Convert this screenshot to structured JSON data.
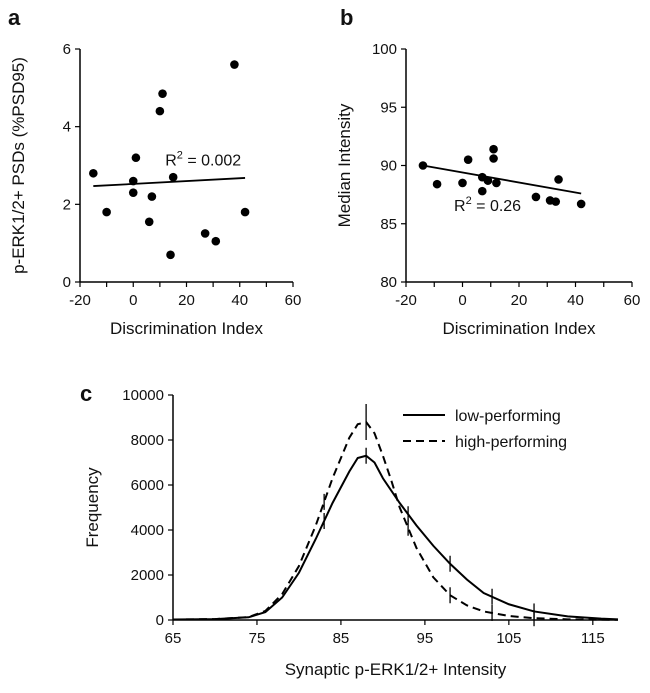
{
  "chart_data": [
    {
      "panel": "a",
      "type": "scatter",
      "xlabel": "Discrimination Index",
      "ylabel": "p-ERK1/2+ PSDs (%PSD95)",
      "xlim": [
        -20,
        60
      ],
      "ylim": [
        0,
        6
      ],
      "xticks": [
        -20,
        -10,
        0,
        10,
        20,
        30,
        40,
        50,
        60
      ],
      "xticklabels": [
        "-20",
        "",
        "0",
        "",
        "20",
        "",
        "40",
        "",
        "60"
      ],
      "yticks": [
        0,
        2,
        4,
        6
      ],
      "grid": false,
      "points": [
        {
          "x": -15,
          "y": 2.8
        },
        {
          "x": -10,
          "y": 1.8
        },
        {
          "x": 0,
          "y": 2.6
        },
        {
          "x": 0,
          "y": 2.3
        },
        {
          "x": 1,
          "y": 3.2
        },
        {
          "x": 6,
          "y": 1.55
        },
        {
          "x": 7,
          "y": 2.2
        },
        {
          "x": 10,
          "y": 4.4
        },
        {
          "x": 11,
          "y": 4.85
        },
        {
          "x": 14,
          "y": 0.7
        },
        {
          "x": 15,
          "y": 2.7
        },
        {
          "x": 27,
          "y": 1.25
        },
        {
          "x": 31,
          "y": 1.05
        },
        {
          "x": 38,
          "y": 5.6
        },
        {
          "x": 42,
          "y": 1.8
        }
      ],
      "fit_line": {
        "x": [
          -15,
          42
        ],
        "y": [
          2.47,
          2.68
        ]
      },
      "annotation": {
        "prefix": "R",
        "superscript": "2",
        "suffix": " = 0.002",
        "x": 12,
        "y": 3.0
      }
    },
    {
      "panel": "b",
      "type": "scatter",
      "xlabel": "Discrimination Index",
      "ylabel": "Median Intensity",
      "xlim": [
        -20,
        60
      ],
      "ylim": [
        80,
        100
      ],
      "xticks": [
        -20,
        -10,
        0,
        10,
        20,
        30,
        40,
        50,
        60
      ],
      "xticklabels": [
        "-20",
        "",
        "0",
        "",
        "20",
        "",
        "40",
        "",
        "60"
      ],
      "yticks": [
        80,
        85,
        90,
        95,
        100
      ],
      "grid": false,
      "points": [
        {
          "x": -14,
          "y": 90.0
        },
        {
          "x": -9,
          "y": 88.4
        },
        {
          "x": 0,
          "y": 88.5
        },
        {
          "x": 2,
          "y": 90.5
        },
        {
          "x": 7,
          "y": 89.0
        },
        {
          "x": 7,
          "y": 87.8
        },
        {
          "x": 9,
          "y": 88.7
        },
        {
          "x": 11,
          "y": 91.4
        },
        {
          "x": 11,
          "y": 90.6
        },
        {
          "x": 12,
          "y": 88.5
        },
        {
          "x": 26,
          "y": 87.3
        },
        {
          "x": 31,
          "y": 87.0
        },
        {
          "x": 33,
          "y": 86.9
        },
        {
          "x": 34,
          "y": 88.8
        },
        {
          "x": 42,
          "y": 86.7
        }
      ],
      "fit_line": {
        "x": [
          -14,
          42
        ],
        "y": [
          90.0,
          87.6
        ]
      },
      "annotation": {
        "prefix": "R",
        "superscript": "2",
        "suffix": " = 0.26",
        "x": -3,
        "y": 86.1
      }
    },
    {
      "panel": "c",
      "type": "line",
      "xlabel": "Synaptic p-ERK1/2+ Intensity",
      "ylabel": "Frequency",
      "xlim": [
        65,
        118
      ],
      "ylim": [
        0,
        10000
      ],
      "xticks": [
        65,
        75,
        85,
        95,
        105,
        115
      ],
      "yticks": [
        0,
        2000,
        4000,
        6000,
        8000,
        10000
      ],
      "grid": false,
      "legend": "top-right",
      "series": [
        {
          "name": "low-performing",
          "dash": "solid",
          "x": [
            65,
            70,
            74,
            76,
            78,
            80,
            82,
            84,
            86,
            87,
            88,
            89,
            90,
            92,
            94,
            96,
            98,
            100,
            102,
            105,
            108,
            112,
            116,
            118
          ],
          "y": [
            20,
            40,
            120,
            350,
            1000,
            2100,
            3600,
            5200,
            6600,
            7200,
            7300,
            7000,
            6300,
            5200,
            4200,
            3300,
            2500,
            1800,
            1200,
            700,
            380,
            160,
            60,
            30
          ]
        },
        {
          "name": "high-performing",
          "dash": "dashed",
          "x": [
            65,
            70,
            74,
            76,
            78,
            80,
            82,
            84,
            86,
            87,
            88,
            89,
            90,
            91,
            92,
            94,
            96,
            98,
            100,
            102,
            105,
            108,
            112,
            118
          ],
          "y": [
            20,
            40,
            130,
            400,
            1150,
            2400,
            4200,
            6300,
            8100,
            8700,
            8800,
            8300,
            7300,
            6200,
            5000,
            3200,
            1900,
            1100,
            650,
            380,
            180,
            80,
            30,
            10
          ]
        }
      ],
      "error_bar_x": [
        83,
        88,
        93,
        98,
        103,
        108
      ]
    }
  ]
}
